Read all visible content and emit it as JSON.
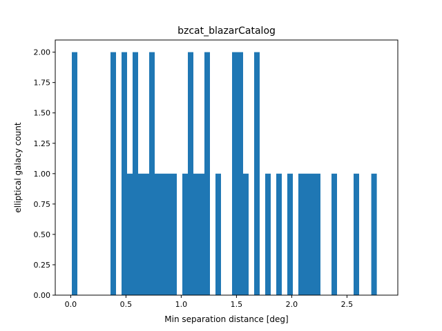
{
  "chart_data": {
    "type": "bar",
    "title": "bzcat_blazarCatalog",
    "xlabel": "Min separation distance [deg]",
    "ylabel": "elliptical galacy count",
    "xlim": [
      -0.14,
      2.96
    ],
    "ylim": [
      0,
      2.1
    ],
    "bin_width": 0.05,
    "bar_color": "#1f77b4",
    "grid": false,
    "x_ticks": [
      {
        "value": 0.0,
        "label": "0.0"
      },
      {
        "value": 0.5,
        "label": "0.5"
      },
      {
        "value": 1.0,
        "label": "1.0"
      },
      {
        "value": 1.5,
        "label": "1.5"
      },
      {
        "value": 2.0,
        "label": "2.0"
      },
      {
        "value": 2.5,
        "label": "2.5"
      }
    ],
    "y_ticks": [
      {
        "value": 0.0,
        "label": "0.00"
      },
      {
        "value": 0.25,
        "label": "0.25"
      },
      {
        "value": 0.5,
        "label": "0.50"
      },
      {
        "value": 0.75,
        "label": "0.75"
      },
      {
        "value": 1.0,
        "label": "1.00"
      },
      {
        "value": 1.25,
        "label": "1.25"
      },
      {
        "value": 1.5,
        "label": "1.50"
      },
      {
        "value": 1.75,
        "label": "1.75"
      },
      {
        "value": 2.0,
        "label": "2.00"
      }
    ],
    "bins": [
      {
        "x_start": 0.01,
        "count": 2
      },
      {
        "x_start": 0.36,
        "count": 2
      },
      {
        "x_start": 0.46,
        "count": 2
      },
      {
        "x_start": 0.51,
        "count": 1
      },
      {
        "x_start": 0.56,
        "count": 2
      },
      {
        "x_start": 0.61,
        "count": 1
      },
      {
        "x_start": 0.66,
        "count": 1
      },
      {
        "x_start": 0.71,
        "count": 2
      },
      {
        "x_start": 0.76,
        "count": 1
      },
      {
        "x_start": 0.81,
        "count": 1
      },
      {
        "x_start": 0.86,
        "count": 1
      },
      {
        "x_start": 0.91,
        "count": 1
      },
      {
        "x_start": 1.01,
        "count": 1
      },
      {
        "x_start": 1.06,
        "count": 2
      },
      {
        "x_start": 1.11,
        "count": 1
      },
      {
        "x_start": 1.16,
        "count": 1
      },
      {
        "x_start": 1.21,
        "count": 2
      },
      {
        "x_start": 1.31,
        "count": 1
      },
      {
        "x_start": 1.46,
        "count": 2
      },
      {
        "x_start": 1.51,
        "count": 2
      },
      {
        "x_start": 1.56,
        "count": 1
      },
      {
        "x_start": 1.66,
        "count": 2
      },
      {
        "x_start": 1.76,
        "count": 1
      },
      {
        "x_start": 1.86,
        "count": 1
      },
      {
        "x_start": 1.96,
        "count": 1
      },
      {
        "x_start": 2.06,
        "count": 1
      },
      {
        "x_start": 2.11,
        "count": 1
      },
      {
        "x_start": 2.16,
        "count": 1
      },
      {
        "x_start": 2.21,
        "count": 1
      },
      {
        "x_start": 2.36,
        "count": 1
      },
      {
        "x_start": 2.56,
        "count": 1
      },
      {
        "x_start": 2.72,
        "count": 1
      }
    ]
  }
}
